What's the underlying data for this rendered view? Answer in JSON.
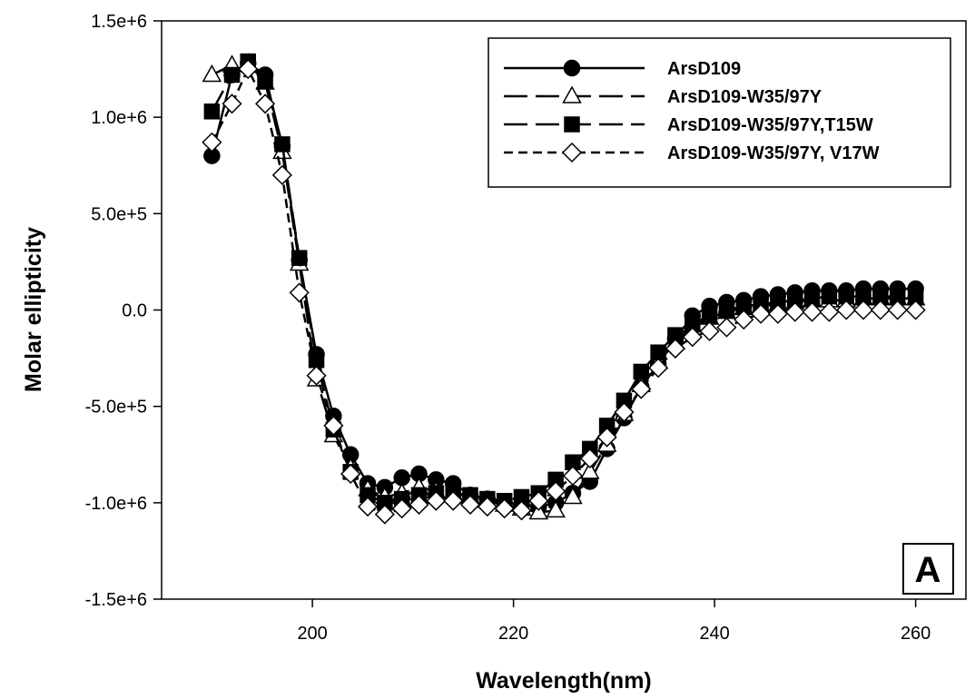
{
  "chart_data": {
    "type": "line",
    "xlabel": "Wavelength(nm)",
    "ylabel": "Molar ellipticity",
    "xlim": [
      185,
      265
    ],
    "ylim": [
      -1500000,
      1500000
    ],
    "x_ticks": [
      200,
      220,
      240,
      260
    ],
    "y_ticks": [
      {
        "value": -1500000,
        "label": "-1.5e+6"
      },
      {
        "value": -1000000,
        "label": "-1.0e+6"
      },
      {
        "value": -500000,
        "label": "-5.0e+5"
      },
      {
        "value": 0,
        "label": "0.0"
      },
      {
        "value": 500000,
        "label": "5.0e+5"
      },
      {
        "value": 1000000,
        "label": "1.0e+6"
      },
      {
        "value": 1500000,
        "label": "1.5e+6"
      }
    ],
    "grid": false,
    "legend_position": "top-right",
    "panel_label": "A",
    "series": [
      {
        "name": "ArsD109",
        "marker": "filled-circle",
        "line": "solid",
        "x": [
          190,
          192,
          193.6,
          195.3,
          197,
          198.7,
          200.4,
          202.1,
          203.8,
          205.5,
          207.2,
          208.9,
          210.6,
          212.3,
          214,
          215.7,
          217.4,
          219.1,
          220.8,
          222.5,
          224.2,
          225.9,
          227.6,
          229.3,
          231,
          232.7,
          234.4,
          236.1,
          237.8,
          239.5,
          241.2,
          242.9,
          244.6,
          246.3,
          248,
          249.7,
          251.4,
          253.1,
          254.8,
          256.5,
          258.2,
          260
        ],
        "y": [
          800000,
          1220000,
          1280000,
          1220000,
          850000,
          260000,
          -230000,
          -550000,
          -750000,
          -900000,
          -920000,
          -870000,
          -850000,
          -880000,
          -900000,
          -960000,
          -980000,
          -1000000,
          -1010000,
          -1020000,
          -1000000,
          -950000,
          -890000,
          -720000,
          -560000,
          -400000,
          -280000,
          -150000,
          -30000,
          20000,
          40000,
          50000,
          70000,
          80000,
          90000,
          100000,
          100000,
          100000,
          110000,
          110000,
          110000,
          110000
        ]
      },
      {
        "name": "ArsD109-W35/97Y",
        "marker": "open-triangle",
        "line": "long-dash",
        "x": [
          190,
          192,
          193.6,
          195.3,
          197,
          198.7,
          200.4,
          202.1,
          203.8,
          205.5,
          207.2,
          208.9,
          210.6,
          212.3,
          214,
          215.7,
          217.4,
          219.1,
          220.8,
          222.5,
          224.2,
          225.9,
          227.6,
          229.3,
          231,
          232.7,
          234.4,
          236.1,
          237.8,
          239.5,
          241.2,
          242.9,
          244.6,
          246.3,
          248,
          249.7,
          251.4,
          253.1,
          254.8,
          256.5,
          258.2,
          260
        ],
        "y": [
          1220000,
          1270000,
          1280000,
          1180000,
          820000,
          240000,
          -360000,
          -650000,
          -820000,
          -930000,
          -970000,
          -950000,
          -920000,
          -940000,
          -950000,
          -970000,
          -990000,
          -1010000,
          -1030000,
          -1050000,
          -1040000,
          -970000,
          -840000,
          -700000,
          -540000,
          -390000,
          -270000,
          -170000,
          -80000,
          -40000,
          -10000,
          10000,
          20000,
          30000,
          40000,
          50000,
          50000,
          50000,
          60000,
          60000,
          60000,
          60000
        ]
      },
      {
        "name": "ArsD109-W35/97Y,T15W",
        "marker": "filled-square",
        "line": "long-dash",
        "x": [
          190,
          192,
          193.6,
          195.3,
          197,
          198.7,
          200.4,
          202.1,
          203.8,
          205.5,
          207.2,
          208.9,
          210.6,
          212.3,
          214,
          215.7,
          217.4,
          219.1,
          220.8,
          222.5,
          224.2,
          225.9,
          227.6,
          229.3,
          231,
          232.7,
          234.4,
          236.1,
          237.8,
          239.5,
          241.2,
          242.9,
          244.6,
          246.3,
          248,
          249.7,
          251.4,
          253.1,
          254.8,
          256.5,
          258.2,
          260
        ],
        "y": [
          1030000,
          1220000,
          1290000,
          1190000,
          860000,
          270000,
          -260000,
          -620000,
          -840000,
          -960000,
          -1000000,
          -980000,
          -960000,
          -950000,
          -950000,
          -960000,
          -980000,
          -990000,
          -970000,
          -950000,
          -880000,
          -790000,
          -720000,
          -600000,
          -470000,
          -320000,
          -220000,
          -130000,
          -70000,
          -30000,
          0,
          20000,
          30000,
          40000,
          50000,
          60000,
          70000,
          70000,
          70000,
          70000,
          70000,
          70000
        ]
      },
      {
        "name": "ArsD109-W35/97Y, V17W",
        "marker": "open-diamond",
        "line": "short-dash",
        "x": [
          190,
          192,
          193.6,
          195.3,
          197,
          198.7,
          200.4,
          202.1,
          203.8,
          205.5,
          207.2,
          208.9,
          210.6,
          212.3,
          214,
          215.7,
          217.4,
          219.1,
          220.8,
          222.5,
          224.2,
          225.9,
          227.6,
          229.3,
          231,
          232.7,
          234.4,
          236.1,
          237.8,
          239.5,
          241.2,
          242.9,
          244.6,
          246.3,
          248,
          249.7,
          251.4,
          253.1,
          254.8,
          256.5,
          258.2,
          260
        ],
        "y": [
          870000,
          1070000,
          1250000,
          1070000,
          700000,
          90000,
          -340000,
          -600000,
          -850000,
          -1020000,
          -1060000,
          -1030000,
          -1010000,
          -990000,
          -990000,
          -1010000,
          -1020000,
          -1030000,
          -1040000,
          -990000,
          -940000,
          -860000,
          -770000,
          -660000,
          -530000,
          -410000,
          -300000,
          -200000,
          -140000,
          -110000,
          -90000,
          -50000,
          -20000,
          -20000,
          -10000,
          -10000,
          -10000,
          0,
          0,
          0,
          0,
          0
        ]
      }
    ]
  }
}
